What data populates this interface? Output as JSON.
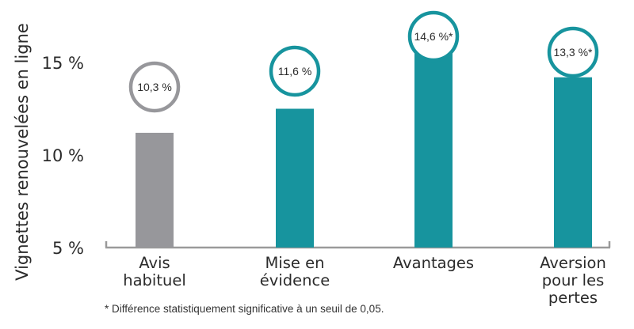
{
  "chart_data": {
    "type": "bar",
    "ylabel": "Vignettes renouvelées en ligne",
    "yticks": [
      "5 %",
      "10 %",
      "15 %"
    ],
    "ylim": [
      5,
      17
    ],
    "categories": [
      [
        "Avis",
        "habituel"
      ],
      [
        "Mise en",
        "évidence"
      ],
      [
        "Avantages"
      ],
      [
        "Aversion",
        "pour les",
        "pertes"
      ]
    ],
    "values": [
      10.3,
      11.6,
      14.6,
      13.3
    ],
    "value_labels": [
      "10,3 %",
      "11,6 %",
      "14,6 %*",
      "13,3 %*"
    ],
    "colors": [
      "#97979b",
      "#17949e",
      "#17949e",
      "#17949e"
    ],
    "axis_color": "#9a9a9a",
    "grid": false
  },
  "footnote": "* Différence statistiquement significative à un seuil de 0,05."
}
